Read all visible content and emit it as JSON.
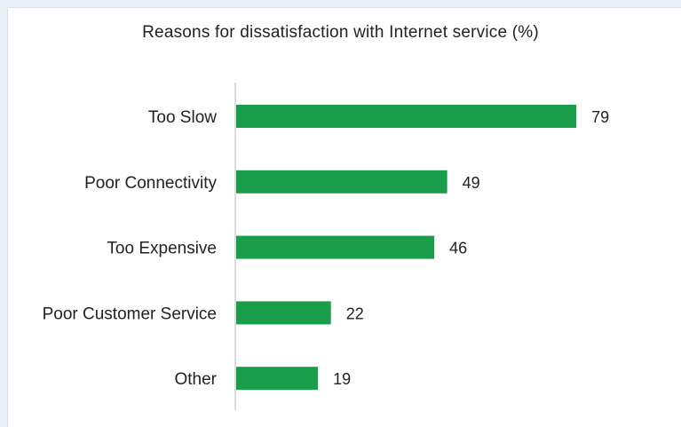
{
  "chart_data": {
    "type": "bar",
    "orientation": "horizontal",
    "title": "Reasons for dissatisfaction with Internet service (%)",
    "categories": [
      "Too Slow",
      "Poor Connectivity",
      "Too Expensive",
      "Poor Customer Service",
      "Other"
    ],
    "values": [
      79,
      49,
      46,
      22,
      19
    ],
    "xlabel": "",
    "ylabel": "",
    "xlim": [
      0,
      100
    ],
    "grid": false,
    "legend": "none",
    "bar_color": "#1a9e4b",
    "axis_color": "#d0d0d0"
  }
}
